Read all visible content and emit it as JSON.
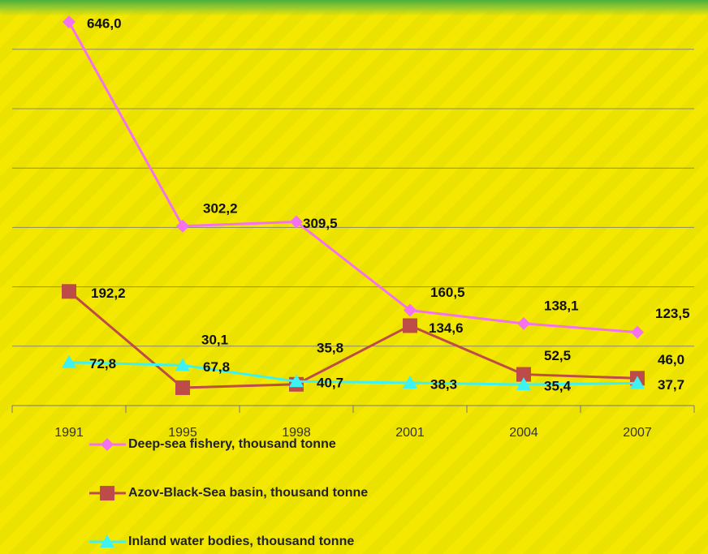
{
  "chart_data": {
    "type": "line",
    "categories": [
      "1991",
      "1995",
      "1998",
      "2001",
      "2004",
      "2007"
    ],
    "series": [
      {
        "name": "Deep-sea fishery, thousand tonne",
        "color": "#f472ee",
        "marker": "diamond",
        "values": [
          646.0,
          302.2,
          309.5,
          160.5,
          138.1,
          123.5
        ],
        "value_labels": [
          "646,0",
          "302,2",
          "309,5",
          "160,5",
          "138,1",
          "123,5"
        ]
      },
      {
        "name": "Azov-Black-Sea basin, thousand tonne",
        "color": "#bd4b47",
        "marker": "square",
        "values": [
          192.2,
          30.1,
          35.8,
          134.6,
          52.5,
          46.0
        ],
        "value_labels": [
          "192,2",
          "30,1",
          "35,8",
          "134,6",
          "52,5",
          "46,0"
        ]
      },
      {
        "name": "Inland water bodies, thousand tonne",
        "color": "#3ff2f2",
        "marker": "triangle",
        "values": [
          72.8,
          67.8,
          40.7,
          38.3,
          35.4,
          37.7
        ],
        "value_labels": [
          "72,8",
          "67,8",
          "40,7",
          "38,3",
          "35,4",
          "37,7"
        ]
      }
    ],
    "ylim": [
      0,
      700
    ],
    "yticks": [
      0,
      100,
      200,
      300,
      400,
      500,
      600
    ],
    "grid": true
  }
}
